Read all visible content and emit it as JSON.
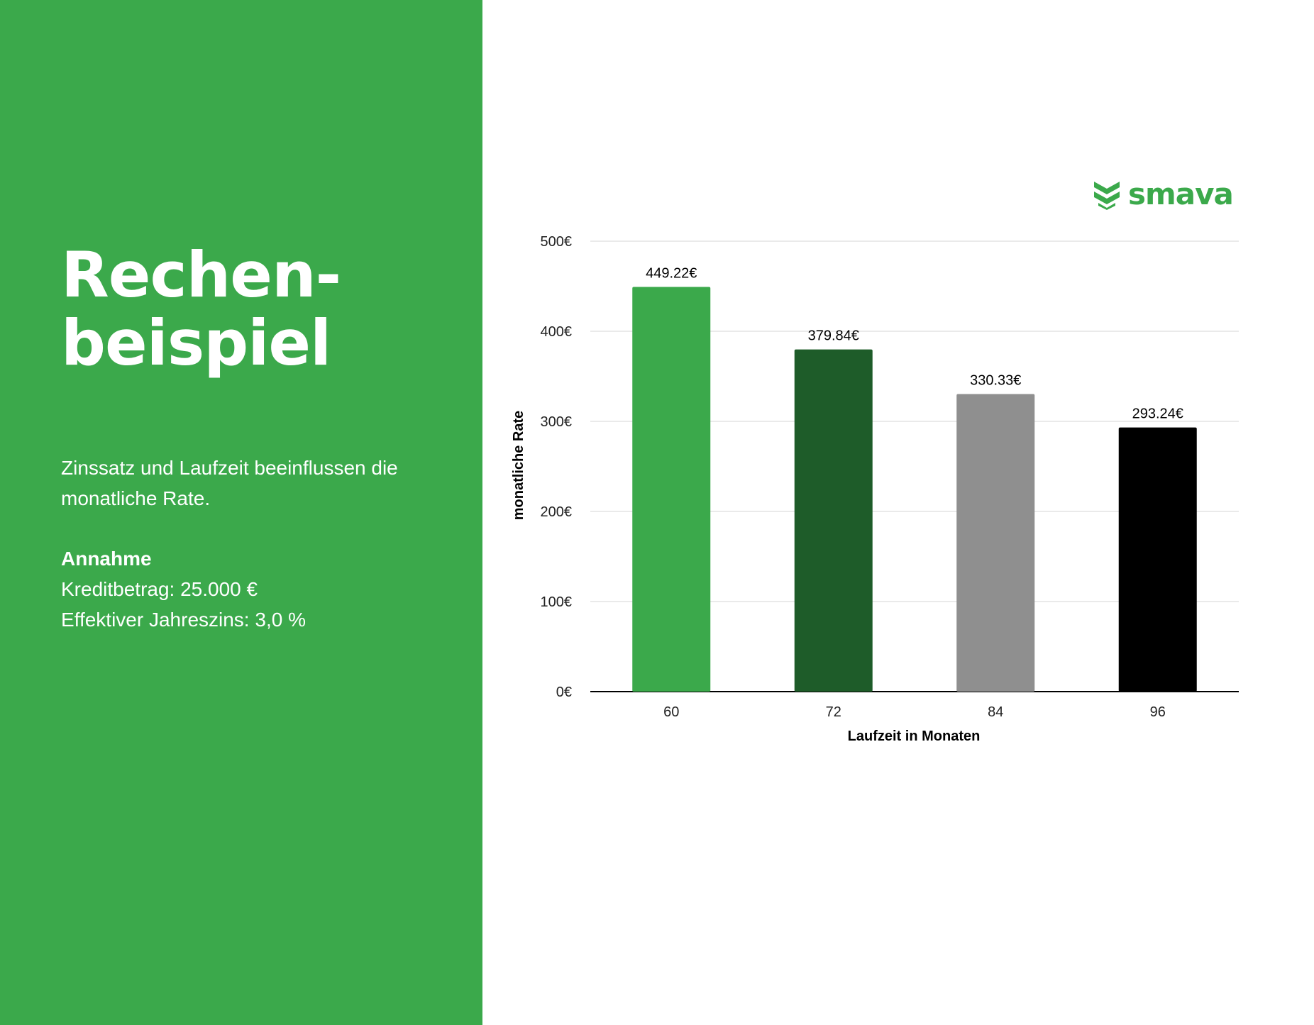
{
  "left": {
    "headline_line1": "Rechen-",
    "headline_line2": "beispiel",
    "intro": "Zinssatz und Laufzeit beeinflussen die monatliche Rate.",
    "assumption_title": "Annahme",
    "assumption_line1": "Kreditbetrag: 25.000 €",
    "assumption_line2": "Effektiver Jahreszins: 3,0 %",
    "background_color": "#3BA94B"
  },
  "logo": {
    "text": "smava",
    "icon": "chevron-stack-icon",
    "color": "#3BA94B"
  },
  "chart_data": {
    "type": "bar",
    "categories": [
      "60",
      "72",
      "84",
      "96"
    ],
    "values": [
      449.22,
      379.84,
      330.33,
      293.24
    ],
    "data_labels": [
      "449.22€",
      "379.84€",
      "330.33€",
      "293.24€"
    ],
    "bar_colors": [
      "#3BA94B",
      "#1E5C29",
      "#8F8F8F",
      "#000000"
    ],
    "xlabel": "Laufzeit in Monaten",
    "ylabel": "monatliche Rate",
    "ylim": [
      0,
      500
    ],
    "yticks": [
      0,
      100,
      200,
      300,
      400,
      500
    ],
    "ytick_labels": [
      "0€",
      "100€",
      "200€",
      "300€",
      "400€",
      "500€"
    ],
    "grid": true
  }
}
